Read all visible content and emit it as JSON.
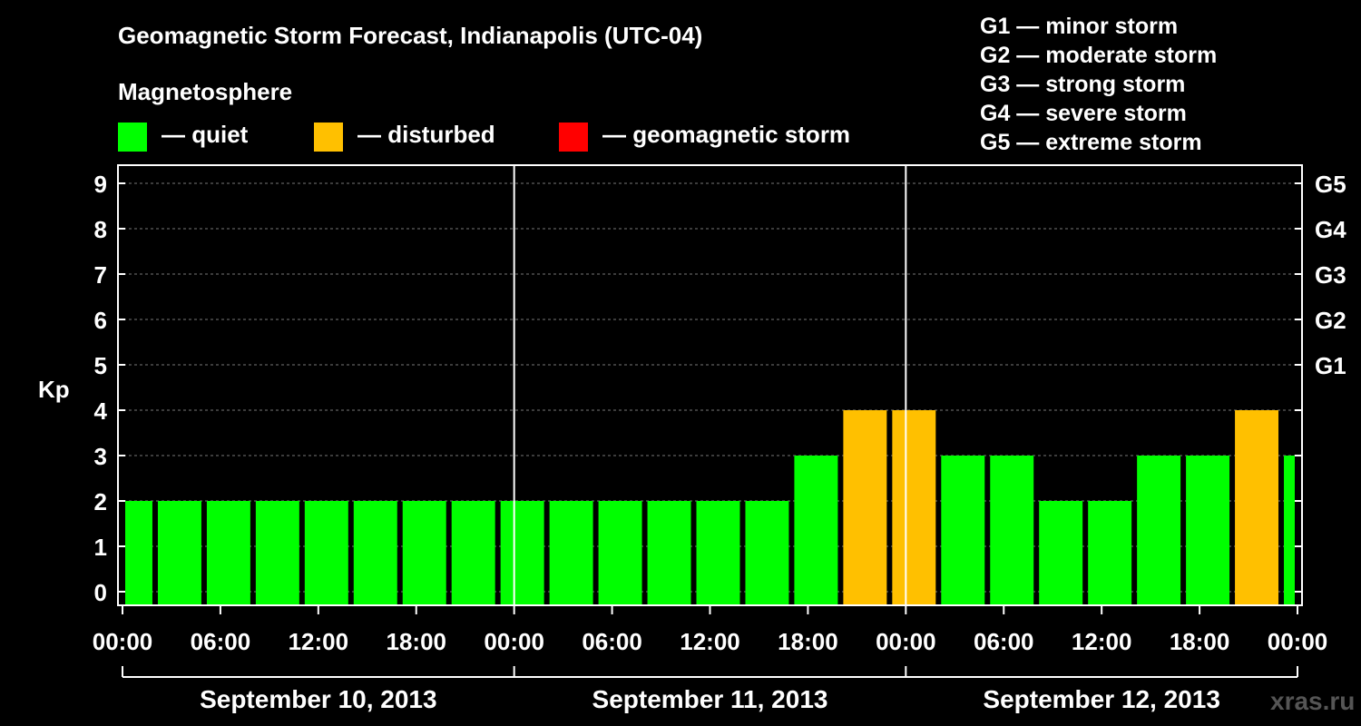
{
  "header": {
    "title": "Geomagnetic Storm Forecast, Indianapolis (UTC-04)",
    "legend_title": "Magnetosphere"
  },
  "legend": [
    {
      "label": "— quiet",
      "color": "#00ff00"
    },
    {
      "label": "— disturbed",
      "color": "#ffc000"
    },
    {
      "label": "— geomagnetic storm",
      "color": "#ff0000"
    }
  ],
  "g_scale": [
    "G1 — minor storm",
    "G2 — moderate storm",
    "G3 — strong storm",
    "G4 — severe storm",
    "G5 — extreme storm"
  ],
  "watermark": "xras.ru",
  "chart_data": {
    "type": "bar",
    "ylabel": "Kp",
    "ylim": [
      0,
      9
    ],
    "yticks": [
      "0",
      "1",
      "2",
      "3",
      "4",
      "5",
      "6",
      "7",
      "8",
      "9"
    ],
    "right_labels": [
      {
        "y": 5,
        "label": "G1"
      },
      {
        "y": 6,
        "label": "G2"
      },
      {
        "y": 7,
        "label": "G3"
      },
      {
        "y": 8,
        "label": "G4"
      },
      {
        "y": 9,
        "label": "G5"
      }
    ],
    "xtick_labels": [
      "00:00",
      "06:00",
      "12:00",
      "18:00",
      "00:00",
      "06:00",
      "12:00",
      "18:00",
      "00:00",
      "06:00",
      "12:00",
      "18:00",
      "00:00"
    ],
    "dates": [
      "September 10, 2013",
      "September 11, 2013",
      "September 12, 2013"
    ],
    "grid": true,
    "x_start": "2013-09-10T00:00",
    "x_end": "2013-09-13T00:00",
    "bars": [
      {
        "start": "2013-09-10T00:00",
        "end": "2013-09-10T02:00",
        "kp": 2
      },
      {
        "start": "2013-09-10T02:00",
        "end": "2013-09-10T05:00",
        "kp": 2
      },
      {
        "start": "2013-09-10T05:00",
        "end": "2013-09-10T08:00",
        "kp": 2
      },
      {
        "start": "2013-09-10T08:00",
        "end": "2013-09-10T11:00",
        "kp": 2
      },
      {
        "start": "2013-09-10T11:00",
        "end": "2013-09-10T14:00",
        "kp": 2
      },
      {
        "start": "2013-09-10T14:00",
        "end": "2013-09-10T17:00",
        "kp": 2
      },
      {
        "start": "2013-09-10T17:00",
        "end": "2013-09-10T20:00",
        "kp": 2
      },
      {
        "start": "2013-09-10T20:00",
        "end": "2013-09-10T23:00",
        "kp": 2
      },
      {
        "start": "2013-09-10T23:00",
        "end": "2013-09-11T02:00",
        "kp": 2
      },
      {
        "start": "2013-09-11T02:00",
        "end": "2013-09-11T05:00",
        "kp": 2
      },
      {
        "start": "2013-09-11T05:00",
        "end": "2013-09-11T08:00",
        "kp": 2
      },
      {
        "start": "2013-09-11T08:00",
        "end": "2013-09-11T11:00",
        "kp": 2
      },
      {
        "start": "2013-09-11T11:00",
        "end": "2013-09-11T14:00",
        "kp": 2
      },
      {
        "start": "2013-09-11T14:00",
        "end": "2013-09-11T17:00",
        "kp": 2
      },
      {
        "start": "2013-09-11T17:00",
        "end": "2013-09-11T20:00",
        "kp": 3
      },
      {
        "start": "2013-09-11T20:00",
        "end": "2013-09-11T23:00",
        "kp": 4
      },
      {
        "start": "2013-09-11T23:00",
        "end": "2013-09-12T02:00",
        "kp": 4
      },
      {
        "start": "2013-09-12T02:00",
        "end": "2013-09-12T05:00",
        "kp": 3
      },
      {
        "start": "2013-09-12T05:00",
        "end": "2013-09-12T08:00",
        "kp": 3
      },
      {
        "start": "2013-09-12T08:00",
        "end": "2013-09-12T11:00",
        "kp": 2
      },
      {
        "start": "2013-09-12T11:00",
        "end": "2013-09-12T14:00",
        "kp": 2
      },
      {
        "start": "2013-09-12T14:00",
        "end": "2013-09-12T17:00",
        "kp": 3
      },
      {
        "start": "2013-09-12T17:00",
        "end": "2013-09-12T20:00",
        "kp": 3
      },
      {
        "start": "2013-09-12T20:00",
        "end": "2013-09-12T23:00",
        "kp": 4
      },
      {
        "start": "2013-09-12T23:00",
        "end": "2013-09-13T00:00",
        "kp": 3
      }
    ],
    "color_quiet": "#00ff00",
    "color_disturbed": "#ffc000",
    "color_storm": "#ff0000"
  }
}
